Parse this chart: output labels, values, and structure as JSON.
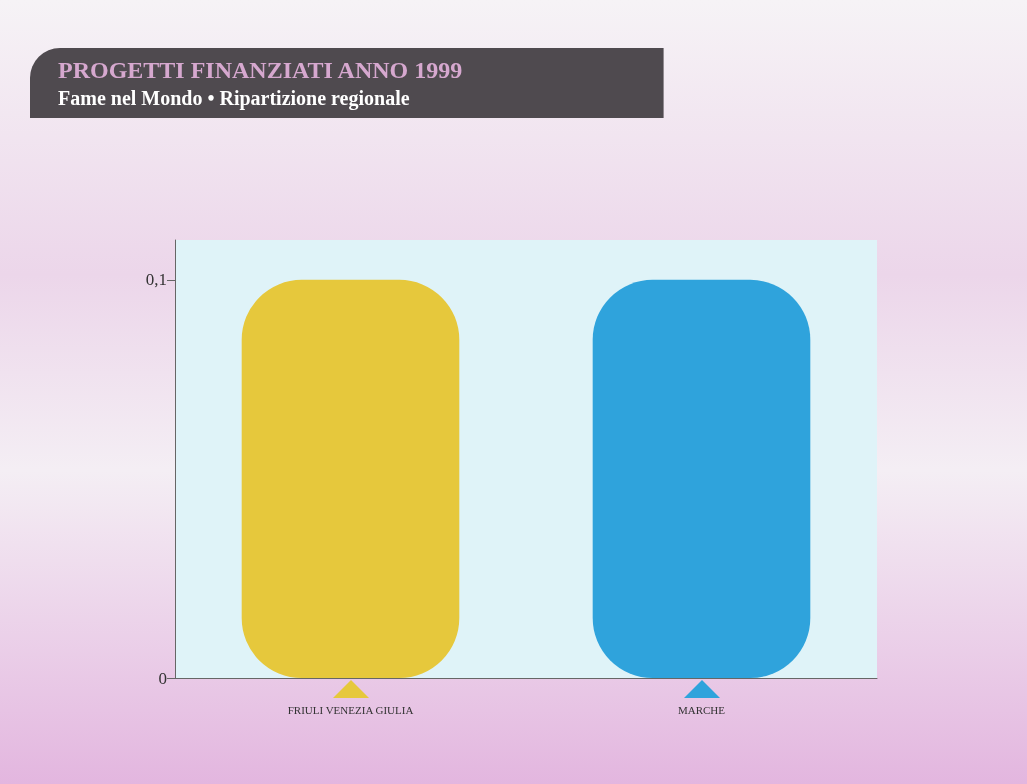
{
  "chart_data": {
    "type": "bar",
    "title": "PROGETTI FINANZIATI ANNO 1999",
    "subtitle": "Fame nel Mondo • Ripartizione regionale",
    "categories": [
      "FRIULI VENEZIA GIULIA",
      "MARCHE"
    ],
    "values": [
      0.1,
      0.1
    ],
    "colors": [
      "#e6c83c",
      "#2fa3dc"
    ],
    "ylim": [
      0,
      0.11
    ],
    "yticks": [
      0,
      {
        "value": 0.1,
        "label": "0,1"
      }
    ],
    "grid": false
  }
}
